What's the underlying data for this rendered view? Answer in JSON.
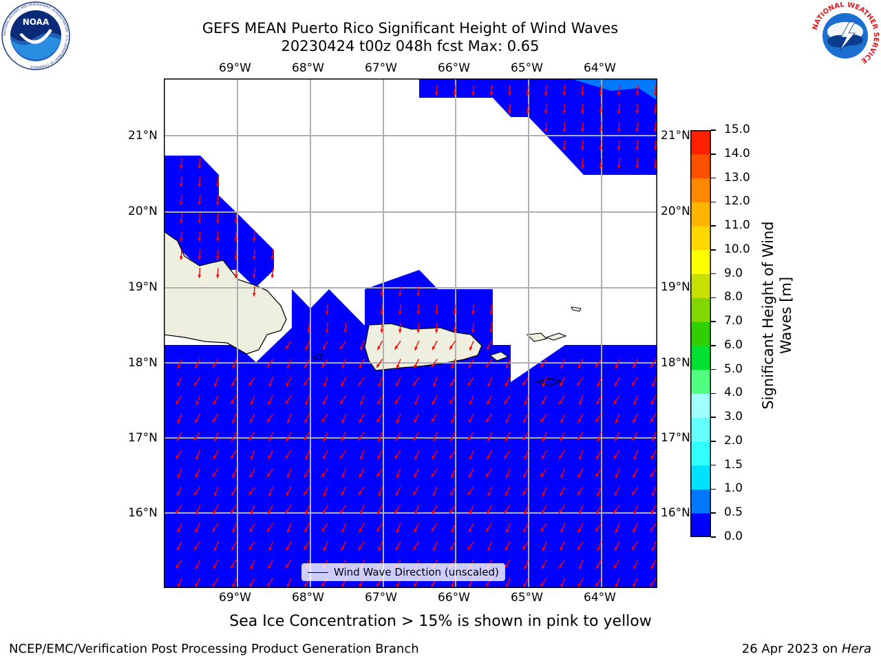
{
  "title": {
    "line1": "GEFS MEAN Puerto Rico Significant Height of Wind Waves",
    "line2": "20230424 t00z 048h fcst   Max: 0.65"
  },
  "map": {
    "lon_labels": [
      "69°W",
      "68°W",
      "67°W",
      "66°W",
      "65°W",
      "64°W"
    ],
    "lat_labels": [
      "21°N",
      "20°N",
      "19°N",
      "18°N",
      "17°N",
      "16°N"
    ],
    "lon_range": [
      -70.0,
      -63.25
    ],
    "lat_range": [
      15.0,
      21.75
    ],
    "ocean_color": "#0000ff",
    "land_color": "#efefdf",
    "arrow_color": "#ff0000",
    "arrow_direction": "south-southwest"
  },
  "legend": {
    "label": "Wind Wave Direction (unscaled)"
  },
  "colorbar": {
    "label_line1": "Significant Height of Wind",
    "label_line2": "Waves [m]",
    "ticks": [
      "0.0",
      "0.5",
      "1.0",
      "1.5",
      "2.0",
      "3.0",
      "4.0",
      "5.0",
      "6.0",
      "7.0",
      "8.0",
      "9.0",
      "10.0",
      "11.0",
      "12.0",
      "13.0",
      "14.0",
      "15.0"
    ],
    "colors": [
      "#0000ff",
      "#0078ff",
      "#00e1ff",
      "#32ffff",
      "#64ffff",
      "#a0ffff",
      "#50ff80",
      "#00e030",
      "#30d000",
      "#80d800",
      "#c8e000",
      "#ffff00",
      "#ffd800",
      "#ffb400",
      "#ff8800",
      "#ff5000",
      "#ff2000"
    ]
  },
  "note": "Sea Ice Concentration > 15% is shown in pink to yellow",
  "footer": {
    "left": "NCEP/EMC/Verification Post Processing Product Generation Branch",
    "right_prefix": "26 Apr 2023 on ",
    "right_host": "Hera"
  },
  "logos": {
    "noaa_text": "NOAA",
    "noaa_ring": "NATIONAL OCEANIC AND ATMOSPHERIC ADMINISTRATION · U.S. DEPARTMENT OF COMMERCE",
    "nws_ring": "NATIONAL WEATHER SERVICE"
  }
}
